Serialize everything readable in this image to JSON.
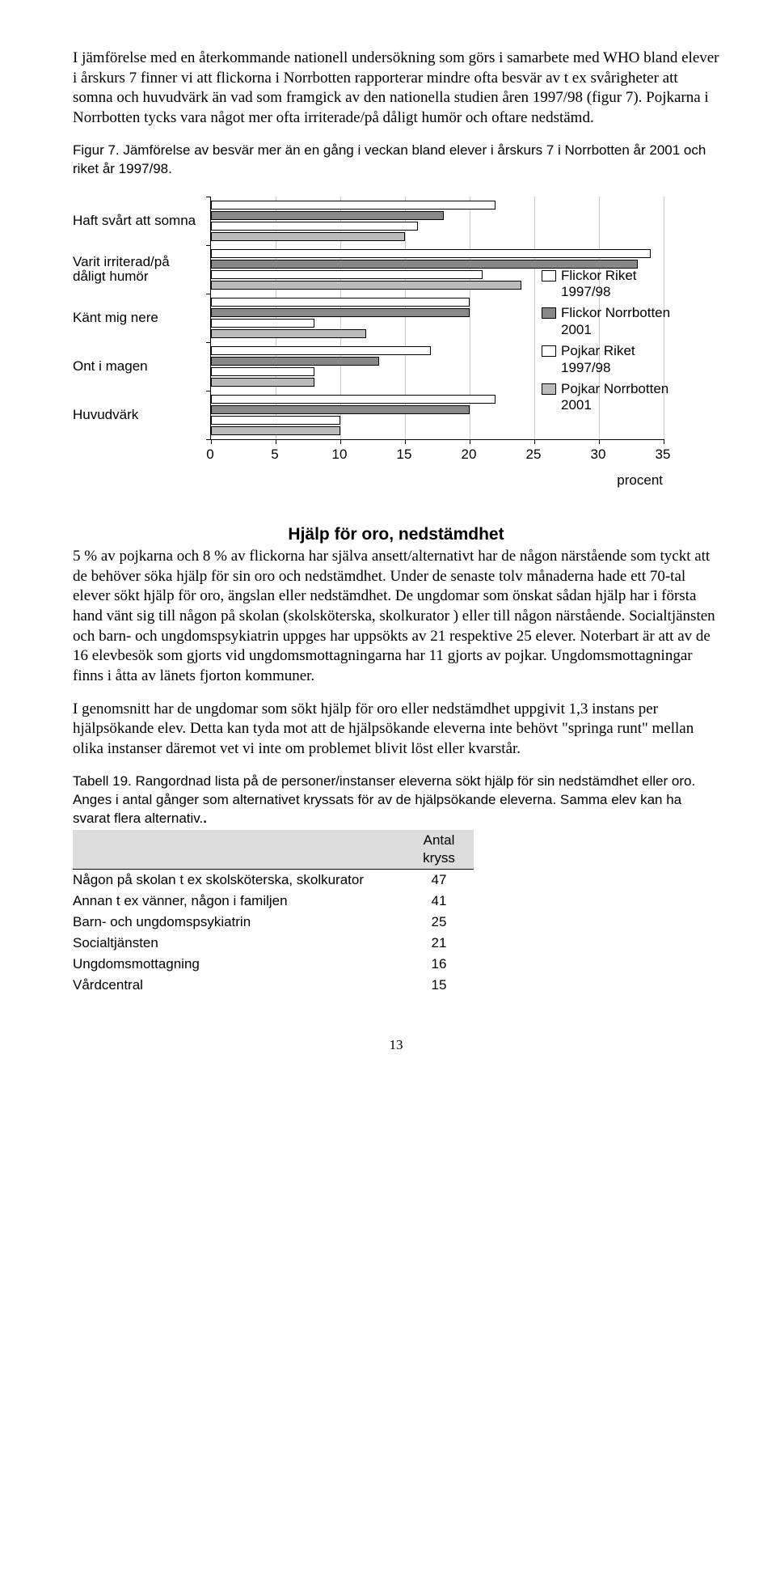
{
  "para1": "I jämförelse med en återkommande nationell undersökning som görs i samarbete med WHO bland elever i årskurs 7 finner vi att flickorna i Norrbotten rapporterar mindre ofta besvär av t ex svårigheter att somna och huvudvärk än vad som framgick av den nationella studien åren 1997/98 (figur 7). Pojkarna i Norrbotten tycks vara något mer ofta irriterade/på dåligt humör och oftare nedstämd.",
  "figcap": "Figur 7. Jämförelse av besvär mer än en gång i veckan bland elever i årskurs 7 i Norrbotten år 2001 och riket år 1997/98.",
  "chart": {
    "categories": [
      "Haft svårt att somna",
      "Varit irriterad/på dåligt humör",
      "Känt mig nere",
      "Ont i magen",
      "Huvudvärk"
    ],
    "series": [
      {
        "name": "Flickor Riket 1997/98",
        "color": "#ffffff",
        "values": [
          22,
          34,
          20,
          17,
          22
        ]
      },
      {
        "name": "Flickor Norrbotten 2001",
        "color": "#888888",
        "values": [
          18,
          33,
          20,
          13,
          20
        ]
      },
      {
        "name": "Pojkar Riket 1997/98",
        "color": "#ffffff",
        "values": [
          16,
          21,
          8,
          8,
          10
        ]
      },
      {
        "name": "Pojkar Norrbotten 2001",
        "color": "#bbbbbb",
        "values": [
          15,
          24,
          12,
          8,
          10
        ]
      }
    ],
    "xmax": 35,
    "xticks": [
      0,
      5,
      10,
      15,
      20,
      25,
      30,
      35
    ],
    "xaxis_title": "procent"
  },
  "section_title": "Hjälp för oro, nedstämdhet",
  "para2": "5 % av pojkarna och 8 % av flickorna har själva ansett/alternativt har de någon närstående som tyckt att de behöver söka hjälp för sin oro och nedstämdhet. Under de senaste tolv månaderna hade ett 70-tal elever sökt hjälp för oro, ängslan eller nedstämdhet. De ungdomar som önskat sådan hjälp har i första hand vänt sig till någon på skolan (skolsköterska, skolkurator ) eller till någon närstående. Socialtjänsten och barn- och ungdomspsykiatrin uppges har uppsökts av 21 respektive 25 elever. Noterbart är att av de 16 elevbesök som gjorts vid ungdomsmottagningarna har 11 gjorts av pojkar. Ungdomsmottagningar finns i åtta av länets fjorton kommuner.",
  "para3": "I genomsnitt har de ungdomar som sökt hjälp för oro eller nedstämdhet uppgivit 1,3 instans per hjälpsökande elev. Detta kan tyda mot att de hjälpsökande eleverna inte behövt \"springa runt\" mellan olika instanser däremot vet vi inte om problemet blivit löst eller kvarstår.",
  "tabledesc": "Tabell 19. Rangordnad lista på de personer/instanser eleverna sökt hjälp för sin nedstämdhet eller oro. Anges i antal gånger som alternativet kryssats för av de hjälpsökande eleverna. Samma elev kan ha svarat flera alternativ.",
  "table": {
    "header": [
      "",
      "Antal kryss"
    ],
    "rows": [
      [
        "Någon på skolan t ex skolsköterska, skolkurator",
        "47"
      ],
      [
        "Annan t ex vänner, någon i familjen",
        "41"
      ],
      [
        "Barn- och ungdomspsykiatrin",
        "25"
      ],
      [
        "Socialtjänsten",
        "21"
      ],
      [
        "Ungdomsmottagning",
        "16"
      ],
      [
        "Vårdcentral",
        "15"
      ]
    ]
  },
  "pagenum": "13"
}
